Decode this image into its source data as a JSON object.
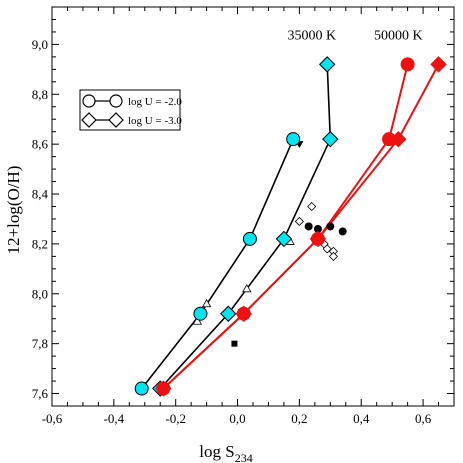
{
  "chart_data": {
    "type": "scatter",
    "xlabel_main": "log S",
    "xlabel_sub": "234",
    "ylabel": "12+log(O/H)",
    "xlim": [
      -0.6,
      0.7
    ],
    "ylim": [
      7.55,
      9.15
    ],
    "xticks": [
      -0.6,
      -0.4,
      -0.2,
      0.0,
      0.2,
      0.4,
      0.6
    ],
    "xtick_labels": [
      "-0,6",
      "-0,4",
      "-0,2",
      "0,0",
      "0,2",
      "0,4",
      "0,6"
    ],
    "yticks": [
      7.6,
      7.8,
      8.0,
      8.2,
      8.4,
      8.6,
      8.8,
      9.0
    ],
    "ytick_labels": [
      "7,6",
      "7,8",
      "8,0",
      "8,2",
      "8,4",
      "8,6",
      "8,8",
      "9,0"
    ],
    "grid": false,
    "legend_position": "upper-left",
    "legend": [
      {
        "label": "log U = -2.0",
        "marker": "circle"
      },
      {
        "label": "log U = -3.0",
        "marker": "diamond"
      }
    ],
    "annotations": [
      {
        "text": "35000 K",
        "x": 0.24,
        "y": 9.02
      },
      {
        "text": "50000 K",
        "x": 0.52,
        "y": 9.02
      }
    ],
    "series": [
      {
        "marker": "circle",
        "color": "#00e5ef",
        "x": [
          -0.31,
          -0.12,
          0.04,
          0.18
        ],
        "y": [
          7.62,
          7.92,
          8.22,
          8.62
        ]
      },
      {
        "marker": "diamond",
        "color": "#00e5ef",
        "x": [
          -0.25,
          -0.03,
          0.15,
          0.3,
          0.29
        ],
        "y": [
          7.62,
          7.92,
          8.22,
          8.62,
          8.92
        ]
      },
      {
        "marker": "circle",
        "color": "#ee1111",
        "x": [
          -0.24,
          0.02,
          0.26,
          0.49,
          0.55
        ],
        "y": [
          7.62,
          7.92,
          8.22,
          8.62,
          8.92
        ]
      },
      {
        "marker": "diamond",
        "color": "#ee1111",
        "x": [
          -0.24,
          0.02,
          0.26,
          0.52,
          0.65
        ],
        "y": [
          7.62,
          7.92,
          8.22,
          8.62,
          8.92
        ]
      }
    ],
    "observations": [
      {
        "marker": "filled-triangle-down",
        "x": 0.2,
        "y": 8.6
      },
      {
        "marker": "filled-square",
        "x": -0.01,
        "y": 7.8
      },
      {
        "marker": "open-triangle",
        "x": -0.1,
        "y": 7.96
      },
      {
        "marker": "open-triangle",
        "x": 0.03,
        "y": 8.02
      },
      {
        "marker": "open-triangle",
        "x": 0.17,
        "y": 8.21
      },
      {
        "marker": "open-triangle",
        "x": -0.13,
        "y": 7.89
      },
      {
        "marker": "open-diamond",
        "x": 0.24,
        "y": 8.35
      },
      {
        "marker": "open-diamond",
        "x": 0.2,
        "y": 8.29
      },
      {
        "marker": "open-diamond",
        "x": 0.28,
        "y": 8.2
      },
      {
        "marker": "open-diamond",
        "x": 0.29,
        "y": 8.18
      },
      {
        "marker": "open-diamond",
        "x": 0.31,
        "y": 8.17
      },
      {
        "marker": "open-diamond",
        "x": 0.31,
        "y": 8.15
      },
      {
        "marker": "filled-circle",
        "x": 0.23,
        "y": 8.27
      },
      {
        "marker": "filled-circle",
        "x": 0.26,
        "y": 8.26
      },
      {
        "marker": "filled-circle",
        "x": 0.3,
        "y": 8.27
      },
      {
        "marker": "filled-circle",
        "x": 0.34,
        "y": 8.25
      }
    ]
  }
}
